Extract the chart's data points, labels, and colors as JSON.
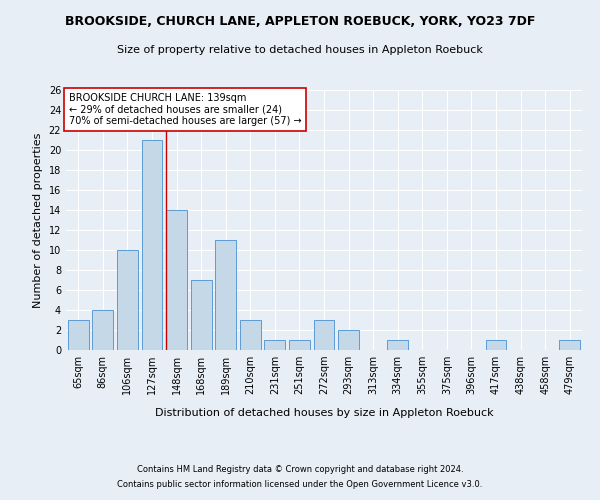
{
  "title": "BROOKSIDE, CHURCH LANE, APPLETON ROEBUCK, YORK, YO23 7DF",
  "subtitle": "Size of property relative to detached houses in Appleton Roebuck",
  "xlabel": "Distribution of detached houses by size in Appleton Roebuck",
  "ylabel": "Number of detached properties",
  "categories": [
    "65sqm",
    "86sqm",
    "106sqm",
    "127sqm",
    "148sqm",
    "168sqm",
    "189sqm",
    "210sqm",
    "231sqm",
    "251sqm",
    "272sqm",
    "293sqm",
    "313sqm",
    "334sqm",
    "355sqm",
    "375sqm",
    "396sqm",
    "417sqm",
    "438sqm",
    "458sqm",
    "479sqm"
  ],
  "values": [
    3,
    4,
    10,
    21,
    14,
    7,
    11,
    3,
    1,
    1,
    3,
    2,
    0,
    1,
    0,
    0,
    0,
    1,
    0,
    0,
    1
  ],
  "bar_color": "#c5d8e8",
  "bar_edge_color": "#5b9bd5",
  "annotation_text_line1": "BROOKSIDE CHURCH LANE: 139sqm",
  "annotation_text_line2": "← 29% of detached houses are smaller (24)",
  "annotation_text_line3": "70% of semi-detached houses are larger (57) →",
  "annotation_box_color": "#ffffff",
  "annotation_box_edge": "#cc0000",
  "vline_index": 3.57,
  "ylim": [
    0,
    26
  ],
  "yticks": [
    0,
    2,
    4,
    6,
    8,
    10,
    12,
    14,
    16,
    18,
    20,
    22,
    24,
    26
  ],
  "bg_color": "#e8eef5",
  "plot_bg_color": "#e8eef5",
  "footer_line1": "Contains HM Land Registry data © Crown copyright and database right 2024.",
  "footer_line2": "Contains public sector information licensed under the Open Government Licence v3.0.",
  "title_fontsize": 9,
  "subtitle_fontsize": 8,
  "xlabel_fontsize": 8,
  "ylabel_fontsize": 8,
  "tick_fontsize": 7,
  "annotation_fontsize": 7,
  "footer_fontsize": 6
}
